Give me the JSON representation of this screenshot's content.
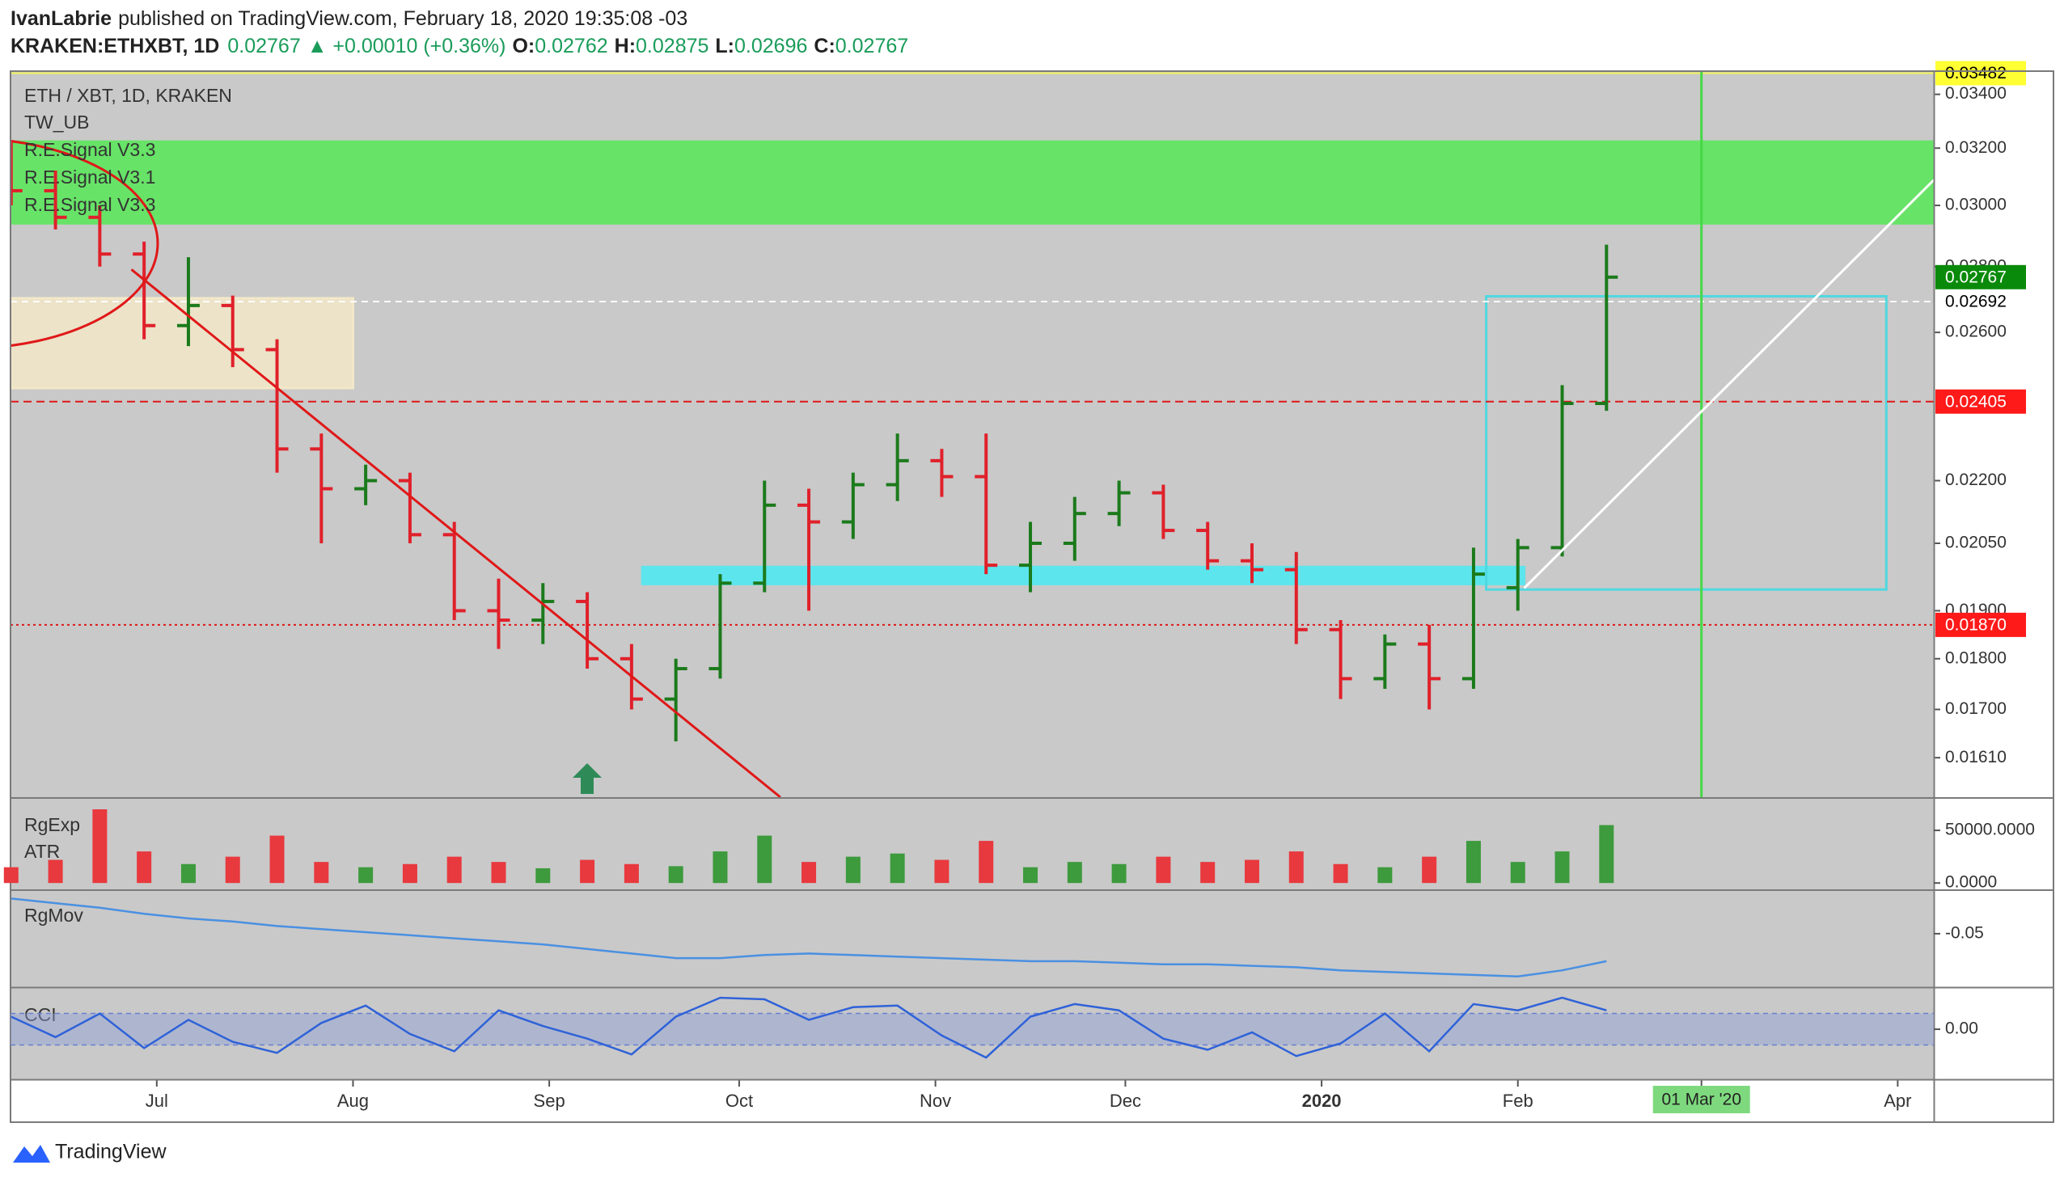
{
  "header": {
    "author": "IvanLabrie",
    "published": "published on TradingView.com, February 18, 2020 19:35:08 -03",
    "symbol": "KRAKEN:ETHXBT, 1D",
    "last": 0.02767,
    "change": "▲ +0.00010 (+0.36%)",
    "ohlc": [
      {
        "label": "O:",
        "value": 0.02762
      },
      {
        "label": "H:",
        "value": 0.02875
      },
      {
        "label": "L:",
        "value": 0.02696
      },
      {
        "label": "C:",
        "value": 0.02767
      }
    ]
  },
  "footer": {
    "brand": "TradingView"
  },
  "chart_data": {
    "type": "ohlc",
    "title": "ETH / XBT, 1D, KRAKEN",
    "indicators": [
      "TW_UB",
      "R.E.Signal V3.3",
      "R.E.Signal V3.1",
      "R.E.Signal V3.3"
    ],
    "log_scale": true,
    "grid": false,
    "colors": {
      "up": "#1b7a1b",
      "down": "#e0202a"
    },
    "xlim": [
      -0.1,
      303.7
    ],
    "xticks": [
      {
        "value": 23,
        "label": "Jul"
      },
      {
        "value": 54,
        "label": "Aug"
      },
      {
        "value": 85,
        "label": "Sep"
      },
      {
        "value": 115,
        "label": "Oct"
      },
      {
        "value": 146,
        "label": "Nov"
      },
      {
        "value": 176,
        "label": "Dec"
      },
      {
        "value": 207,
        "label": "2020"
      },
      {
        "value": 238,
        "label": "Feb"
      },
      {
        "value": 267,
        "label": "Mar"
      },
      {
        "value": 298,
        "label": "Apr"
      }
    ],
    "ylim": [
      0.0154,
      0.0349
    ],
    "yticks": [
      {
        "value": 0.034,
        "label": "0.03400"
      },
      {
        "value": 0.032,
        "label": "0.03200"
      },
      {
        "value": 0.03,
        "label": "0.03000"
      },
      {
        "value": 0.028,
        "label": "0.02800"
      },
      {
        "value": 0.026,
        "label": "0.02600"
      },
      {
        "value": 0.022,
        "label": "0.02200"
      },
      {
        "value": 0.0205,
        "label": "0.02050"
      },
      {
        "value": 0.019,
        "label": "0.01900"
      },
      {
        "value": 0.018,
        "label": "0.01800"
      },
      {
        "value": 0.017,
        "label": "0.01700"
      },
      {
        "value": 0.0161,
        "label": "0.01610"
      }
    ],
    "x": [
      0,
      7,
      14,
      21,
      28,
      35,
      42,
      49,
      56,
      63,
      70,
      77,
      84,
      91,
      98,
      105,
      112,
      119,
      126,
      133,
      140,
      147,
      154,
      161,
      168,
      175,
      182,
      189,
      196,
      203,
      210,
      217,
      224,
      231,
      238,
      245,
      252
    ],
    "open": [
      0.031,
      0.0305,
      0.0296,
      0.0284,
      0.0262,
      0.0268,
      0.0255,
      0.0228,
      0.0218,
      0.022,
      0.0207,
      0.019,
      0.0188,
      0.0192,
      0.018,
      0.0172,
      0.0178,
      0.0196,
      0.0214,
      0.021,
      0.0219,
      0.0225,
      0.0221,
      0.02,
      0.0205,
      0.0212,
      0.0217,
      0.0208,
      0.0201,
      0.0199,
      0.0186,
      0.0176,
      0.0183,
      0.0176,
      0.0195,
      0.0204,
      0.024
    ],
    "high": [
      0.0322,
      0.0312,
      0.03,
      0.0288,
      0.0283,
      0.0271,
      0.0258,
      0.0232,
      0.0224,
      0.0222,
      0.021,
      0.0197,
      0.0196,
      0.0194,
      0.0183,
      0.018,
      0.0198,
      0.022,
      0.0218,
      0.0222,
      0.0232,
      0.0228,
      0.0232,
      0.021,
      0.0216,
      0.022,
      0.0219,
      0.021,
      0.0205,
      0.0203,
      0.0188,
      0.0185,
      0.0187,
      0.0204,
      0.0206,
      0.0245,
      0.0287
    ],
    "low": [
      0.03,
      0.0292,
      0.028,
      0.0258,
      0.0256,
      0.025,
      0.0222,
      0.0205,
      0.0214,
      0.0205,
      0.0188,
      0.0182,
      0.0183,
      0.0178,
      0.017,
      0.0164,
      0.0176,
      0.0194,
      0.019,
      0.0206,
      0.0215,
      0.0216,
      0.0198,
      0.0194,
      0.0201,
      0.0209,
      0.0206,
      0.0199,
      0.0196,
      0.0183,
      0.0172,
      0.0174,
      0.017,
      0.0174,
      0.019,
      0.0202,
      0.0238
    ],
    "close": [
      0.0305,
      0.0296,
      0.0284,
      0.0262,
      0.0268,
      0.0255,
      0.0228,
      0.0218,
      0.022,
      0.0207,
      0.019,
      0.0188,
      0.0192,
      0.018,
      0.0172,
      0.0178,
      0.0196,
      0.0214,
      0.021,
      0.0219,
      0.0225,
      0.0221,
      0.02,
      0.0205,
      0.0212,
      0.0217,
      0.0208,
      0.0201,
      0.0199,
      0.0186,
      0.0176,
      0.0183,
      0.0176,
      0.0198,
      0.0204,
      0.024,
      0.02767
    ],
    "zones": [
      {
        "from": 0.02936,
        "to": 0.03228,
        "color": "#5ce65c"
      }
    ],
    "boxes": [
      {
        "x": [
          -0.1,
          54
        ],
        "y": [
          0.02442,
          0.02702
        ],
        "fill": "#ece3c9",
        "stroke": "#f3e8c8"
      },
      {
        "x": [
          99.7,
          239
        ],
        "y": [
          0.01958,
          0.01996
        ],
        "fill": "#5ce5ec",
        "stroke": "#5ce5ec"
      },
      {
        "x": [
          233,
          296.2
        ],
        "y": [
          0.01946,
          0.02708
        ],
        "fill": "none",
        "stroke": "#4fd8e0"
      }
    ],
    "trend_lines": [
      {
        "x": [
          19,
          121.5
        ],
        "y": [
          0.02791,
          0.0154
        ],
        "color": "#e01818"
      },
      {
        "x": [
          239,
          303.7
        ],
        "y": [
          0.01949,
          0.03087
        ],
        "color": "#ffffff"
      }
    ],
    "price_lines": [
      {
        "value": 0.03482,
        "color": "#f2f25a",
        "label_bg": "#ffff33",
        "label_color": "#000000",
        "dash": "none"
      },
      {
        "value": 0.02767,
        "color": "none",
        "label_bg": "#0a8a0a",
        "label_color": "#ffffff",
        "dash": "none"
      },
      {
        "value": 0.02692,
        "color": "#ffffff",
        "label_bg": "#ffffff",
        "label_color": "#000000",
        "dash": "8 6"
      },
      {
        "value": 0.02405,
        "color": "#e01818",
        "label_bg": "#ff1a1a",
        "label_color": "#ffffff",
        "dash": "10 6"
      },
      {
        "value": {
          "value": 0.0187,
          "label": "0.01870"
        },
        "color": "#e01818",
        "label_bg": "#ff1a1a",
        "label_color": "#ffffff",
        "dash": "3 4"
      }
    ],
    "vertical_line": {
      "value": 267,
      "label": "01 Mar '20",
      "color": "#45d845"
    },
    "panes": [
      {
        "type": "bar",
        "labels": [
          "RgExp",
          "ATR"
        ],
        "values": [
          15000,
          22000,
          70000,
          30000,
          18000,
          25000,
          45000,
          20000,
          15000,
          18000,
          25000,
          20000,
          14000,
          22000,
          18000,
          16000,
          30000,
          45000,
          20000,
          25000,
          28000,
          22000,
          40000,
          15000,
          20000,
          18000,
          25000,
          20000,
          22000,
          30000,
          18000,
          15000,
          25000,
          40000,
          20000,
          30000,
          55000
        ],
        "ylim": [
          -6000,
          80000
        ],
        "yticks": [
          {
            "value": 50000,
            "label": "50000.0000"
          },
          {
            "value": 0,
            "label": "0.0000"
          }
        ]
      },
      {
        "type": "line",
        "labels": [
          "RgMov"
        ],
        "color": "#4a90e2",
        "values": [
          -0.027,
          -0.03,
          -0.033,
          -0.037,
          -0.04,
          -0.042,
          -0.045,
          -0.047,
          -0.049,
          -0.051,
          -0.053,
          -0.055,
          -0.057,
          -0.06,
          -0.063,
          -0.066,
          -0.066,
          -0.064,
          -0.063,
          -0.064,
          -0.065,
          -0.066,
          -0.067,
          -0.068,
          -0.068,
          -0.069,
          -0.07,
          -0.07,
          -0.071,
          -0.072,
          -0.074,
          -0.075,
          -0.076,
          -0.077,
          -0.078,
          -0.074,
          -0.068
        ],
        "ylim": [
          -0.085,
          -0.022
        ],
        "yticks": [
          -0.05
        ]
      },
      {
        "type": "line",
        "labels": [
          "CCI"
        ],
        "color": "#2f62d8",
        "values": [
          80,
          -50,
          100,
          -120,
          60,
          -80,
          -150,
          40,
          150,
          -30,
          -140,
          120,
          20,
          -60,
          -160,
          80,
          200,
          190,
          60,
          140,
          150,
          -40,
          -180,
          80,
          160,
          120,
          -60,
          -130,
          -20,
          -170,
          -90,
          100,
          -140,
          160,
          120,
          200,
          120
        ],
        "bands": [
          -100,
          100
        ],
        "ylim": [
          -318,
          262
        ],
        "yticks": [
          {
            "value": 0,
            "label": "0.00"
          }
        ]
      }
    ]
  }
}
